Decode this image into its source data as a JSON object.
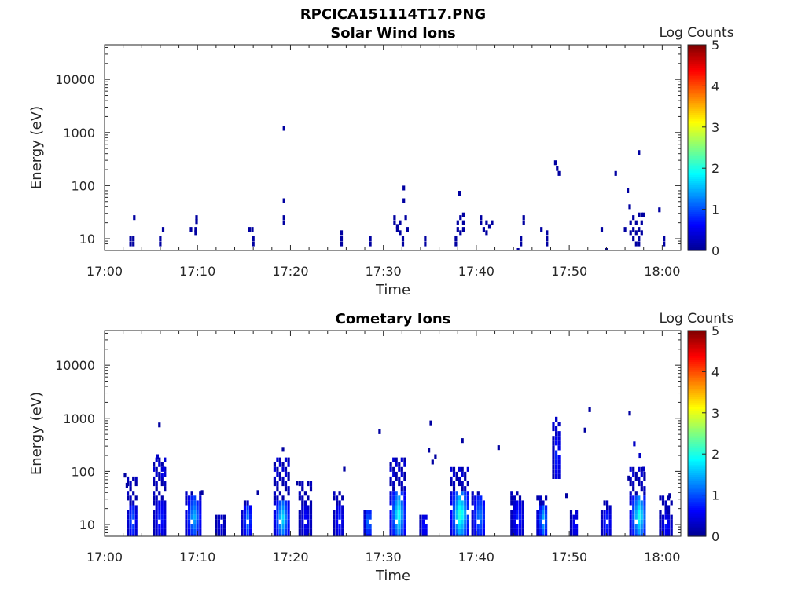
{
  "figure_title": "RPCICA151114T17.PNG",
  "colormap": [
    "#00008f",
    "#0000ff",
    "#0080ff",
    "#00ffff",
    "#80ff80",
    "#ffff00",
    "#ff8000",
    "#ff0000",
    "#800000"
  ],
  "chart_data": [
    {
      "type": "heatmap",
      "title": "Solar Wind Ions",
      "xlabel": "Time",
      "ylabel": "Energy (eV)",
      "x_ticks": [
        "17:00",
        "17:10",
        "17:20",
        "17:30",
        "17:40",
        "17:50",
        "18:00"
      ],
      "y_ticks": [
        "10",
        "100",
        "1000",
        "10000"
      ],
      "y_scale": "log",
      "x_range_minutes_after_1700": [
        0,
        62
      ],
      "y_range_eV": [
        6,
        45000
      ],
      "colorbar": {
        "label": "Log Counts",
        "min": 0,
        "max": 5,
        "ticks": [
          "0",
          "1",
          "2",
          "3",
          "4",
          "5"
        ]
      },
      "cells": [
        {
          "t": 2.8,
          "e": 8,
          "v": 0.1
        },
        {
          "t": 2.8,
          "e": 10,
          "v": 0.1
        },
        {
          "t": 3.1,
          "e": 8,
          "v": 0.1
        },
        {
          "t": 3.1,
          "e": 10,
          "v": 0.1
        },
        {
          "t": 3.2,
          "e": 25,
          "v": 0.1
        },
        {
          "t": 6.0,
          "e": 8,
          "v": 0.1
        },
        {
          "t": 6.0,
          "e": 10,
          "v": 0.1
        },
        {
          "t": 6.3,
          "e": 15,
          "v": 0.1
        },
        {
          "t": 9.3,
          "e": 15,
          "v": 0.1
        },
        {
          "t": 9.8,
          "e": 13,
          "v": 0.1
        },
        {
          "t": 9.8,
          "e": 15,
          "v": 0.1
        },
        {
          "t": 9.9,
          "e": 21,
          "v": 0.1
        },
        {
          "t": 9.9,
          "e": 25,
          "v": 0.1
        },
        {
          "t": 15.6,
          "e": 15,
          "v": 0.1
        },
        {
          "t": 15.9,
          "e": 15,
          "v": 0.1
        },
        {
          "t": 16.0,
          "e": 8,
          "v": 0.1
        },
        {
          "t": 16.0,
          "e": 10,
          "v": 0.1
        },
        {
          "t": 19.3,
          "e": 1200,
          "v": 0.1
        },
        {
          "t": 19.3,
          "e": 52,
          "v": 0.1
        },
        {
          "t": 19.3,
          "e": 20,
          "v": 0.1
        },
        {
          "t": 19.3,
          "e": 25,
          "v": 0.1
        },
        {
          "t": 25.5,
          "e": 8,
          "v": 0.1
        },
        {
          "t": 25.5,
          "e": 10,
          "v": 0.1
        },
        {
          "t": 25.5,
          "e": 13,
          "v": 0.1
        },
        {
          "t": 28.6,
          "e": 8,
          "v": 0.1
        },
        {
          "t": 28.6,
          "e": 10,
          "v": 0.1
        },
        {
          "t": 31.2,
          "e": 20,
          "v": 0.1
        },
        {
          "t": 31.2,
          "e": 25,
          "v": 0.1
        },
        {
          "t": 31.5,
          "e": 15,
          "v": 0.1
        },
        {
          "t": 31.5,
          "e": 17,
          "v": 0.1
        },
        {
          "t": 31.8,
          "e": 13,
          "v": 0.1
        },
        {
          "t": 31.8,
          "e": 20,
          "v": 0.1
        },
        {
          "t": 32.1,
          "e": 8,
          "v": 0.1
        },
        {
          "t": 32.1,
          "e": 10,
          "v": 0.1
        },
        {
          "t": 32.2,
          "e": 52,
          "v": 0.1
        },
        {
          "t": 32.2,
          "e": 90,
          "v": 0.1
        },
        {
          "t": 32.4,
          "e": 25,
          "v": 0.1
        },
        {
          "t": 32.6,
          "e": 15,
          "v": 0.1
        },
        {
          "t": 34.5,
          "e": 8,
          "v": 0.1
        },
        {
          "t": 34.5,
          "e": 10,
          "v": 0.1
        },
        {
          "t": 37.8,
          "e": 8,
          "v": 0.1
        },
        {
          "t": 37.8,
          "e": 10,
          "v": 0.1
        },
        {
          "t": 38.0,
          "e": 15,
          "v": 0.1
        },
        {
          "t": 38.0,
          "e": 20,
          "v": 0.1
        },
        {
          "t": 38.2,
          "e": 72,
          "v": 0.1
        },
        {
          "t": 38.3,
          "e": 13,
          "v": 0.1
        },
        {
          "t": 38.3,
          "e": 25,
          "v": 0.1
        },
        {
          "t": 38.6,
          "e": 15,
          "v": 0.1
        },
        {
          "t": 38.6,
          "e": 20,
          "v": 0.1
        },
        {
          "t": 38.6,
          "e": 28,
          "v": 0.1
        },
        {
          "t": 40.5,
          "e": 20,
          "v": 0.1
        },
        {
          "t": 40.5,
          "e": 25,
          "v": 0.1
        },
        {
          "t": 40.8,
          "e": 15,
          "v": 0.1
        },
        {
          "t": 41.1,
          "e": 13,
          "v": 0.1
        },
        {
          "t": 41.1,
          "e": 20,
          "v": 0.1
        },
        {
          "t": 41.4,
          "e": 17,
          "v": 0.1
        },
        {
          "t": 41.7,
          "e": 20,
          "v": 0.1
        },
        {
          "t": 44.5,
          "e": 6,
          "v": 0.1
        },
        {
          "t": 44.8,
          "e": 8,
          "v": 0.1
        },
        {
          "t": 44.8,
          "e": 10,
          "v": 0.1
        },
        {
          "t": 45.1,
          "e": 20,
          "v": 0.1
        },
        {
          "t": 45.1,
          "e": 25,
          "v": 0.1
        },
        {
          "t": 47.0,
          "e": 15,
          "v": 0.1
        },
        {
          "t": 47.6,
          "e": 8,
          "v": 0.1
        },
        {
          "t": 47.6,
          "e": 10,
          "v": 0.1
        },
        {
          "t": 47.6,
          "e": 13,
          "v": 0.1
        },
        {
          "t": 48.5,
          "e": 270,
          "v": 0.1
        },
        {
          "t": 48.7,
          "e": 210,
          "v": 0.1
        },
        {
          "t": 48.9,
          "e": 170,
          "v": 0.1
        },
        {
          "t": 53.5,
          "e": 15,
          "v": 0.1
        },
        {
          "t": 54.0,
          "e": 6,
          "v": 0.1
        },
        {
          "t": 55.0,
          "e": 170,
          "v": 0.1
        },
        {
          "t": 56.0,
          "e": 15,
          "v": 0.1
        },
        {
          "t": 56.3,
          "e": 80,
          "v": 0.1
        },
        {
          "t": 56.5,
          "e": 40,
          "v": 0.1
        },
        {
          "t": 56.6,
          "e": 13,
          "v": 0.1
        },
        {
          "t": 56.6,
          "e": 20,
          "v": 0.1
        },
        {
          "t": 56.9,
          "e": 10,
          "v": 0.1
        },
        {
          "t": 56.9,
          "e": 15,
          "v": 0.1
        },
        {
          "t": 56.9,
          "e": 25,
          "v": 0.1
        },
        {
          "t": 57.2,
          "e": 8,
          "v": 0.1
        },
        {
          "t": 57.2,
          "e": 13,
          "v": 0.1
        },
        {
          "t": 57.2,
          "e": 20,
          "v": 0.1
        },
        {
          "t": 57.5,
          "e": 8,
          "v": 0.1
        },
        {
          "t": 57.5,
          "e": 10,
          "v": 0.1
        },
        {
          "t": 57.5,
          "e": 15,
          "v": 0.1
        },
        {
          "t": 57.5,
          "e": 28,
          "v": 0.1
        },
        {
          "t": 57.5,
          "e": 420,
          "v": 0.1
        },
        {
          "t": 57.8,
          "e": 13,
          "v": 0.1
        },
        {
          "t": 57.8,
          "e": 20,
          "v": 0.1
        },
        {
          "t": 57.8,
          "e": 28,
          "v": 0.1
        },
        {
          "t": 58.0,
          "e": 28,
          "v": 0.1
        },
        {
          "t": 59.7,
          "e": 35,
          "v": 0.1
        },
        {
          "t": 60.2,
          "e": 8,
          "v": 0.1
        },
        {
          "t": 60.2,
          "e": 10,
          "v": 0.1
        }
      ]
    },
    {
      "type": "heatmap",
      "title": "Cometary Ions",
      "xlabel": "Time",
      "ylabel": "Energy (eV)",
      "x_ticks": [
        "17:00",
        "17:10",
        "17:20",
        "17:30",
        "17:40",
        "17:50",
        "18:00"
      ],
      "y_ticks": [
        "10",
        "100",
        "1000",
        "10000"
      ],
      "y_scale": "log",
      "x_range_minutes_after_1700": [
        0,
        62
      ],
      "y_range_eV": [
        6,
        45000
      ],
      "colorbar": {
        "label": "Log Counts",
        "min": 0,
        "max": 5,
        "ticks": [
          "0",
          "1",
          "2",
          "3",
          "4",
          "5"
        ]
      },
      "bursts": [
        {
          "t0": 2.5,
          "t1": 3.4,
          "emin": 6,
          "ecore": 25,
          "emax": 85,
          "peak": 1.3
        },
        {
          "t0": 5.3,
          "t1": 6.6,
          "emin": 6,
          "ecore": 30,
          "emax": 200,
          "peak": 0.9
        },
        {
          "t0": 8.8,
          "t1": 10.3,
          "emin": 6,
          "ecore": 32,
          "emax": 40,
          "peak": 1.6
        },
        {
          "t0": 12.0,
          "t1": 12.9,
          "emin": 6,
          "ecore": 15,
          "emax": 15,
          "peak": 0.6
        },
        {
          "t0": 14.8,
          "t1": 15.9,
          "emin": 6,
          "ecore": 25,
          "emax": 30,
          "peak": 1.3
        },
        {
          "t0": 18.3,
          "t1": 19.8,
          "emin": 6,
          "ecore": 28,
          "emax": 170,
          "peak": 1.9
        },
        {
          "t0": 21.0,
          "t1": 22.2,
          "emin": 6,
          "ecore": 25,
          "emax": 60,
          "peak": 0.7
        },
        {
          "t0": 24.7,
          "t1": 25.7,
          "emin": 6,
          "ecore": 25,
          "emax": 40,
          "peak": 0.9
        },
        {
          "t0": 28.0,
          "t1": 28.8,
          "emin": 6,
          "ecore": 20,
          "emax": 20,
          "peak": 1.5
        },
        {
          "t0": 30.8,
          "t1": 32.3,
          "emin": 6,
          "ecore": 40,
          "emax": 190,
          "peak": 2.1
        },
        {
          "t0": 34.0,
          "t1": 34.8,
          "emin": 6,
          "ecore": 15,
          "emax": 15,
          "peak": 0.9
        },
        {
          "t0": 37.3,
          "t1": 39.1,
          "emin": 6,
          "ecore": 40,
          "emax": 110,
          "peak": 2.3
        },
        {
          "t0": 39.6,
          "t1": 41.0,
          "emin": 6,
          "ecore": 35,
          "emax": 40,
          "peak": 1.4
        },
        {
          "t0": 43.8,
          "t1": 45.1,
          "emin": 6,
          "ecore": 30,
          "emax": 40,
          "peak": 0.9
        },
        {
          "t0": 46.6,
          "t1": 47.7,
          "emin": 6,
          "ecore": 25,
          "emax": 35,
          "peak": 1.6
        },
        {
          "t0": 48.3,
          "t1": 49.0,
          "emin": 80,
          "ecore": 500,
          "emax": 1000,
          "peak": 1.0
        },
        {
          "t0": 50.2,
          "t1": 51.0,
          "emin": 6,
          "ecore": 15,
          "emax": 20,
          "peak": 0.8
        },
        {
          "t0": 53.5,
          "t1": 54.5,
          "emin": 6,
          "ecore": 20,
          "emax": 30,
          "peak": 1.0
        },
        {
          "t0": 56.6,
          "t1": 58.3,
          "emin": 6,
          "ecore": 35,
          "emax": 120,
          "peak": 2.1
        },
        {
          "t0": 59.8,
          "t1": 61.0,
          "emin": 6,
          "ecore": 15,
          "emax": 35,
          "peak": 0.8
        }
      ],
      "cells": [
        {
          "t": 2.2,
          "e": 85,
          "v": 0.1
        },
        {
          "t": 2.4,
          "e": 55,
          "v": 0.1
        },
        {
          "t": 5.9,
          "e": 750,
          "v": 0.1
        },
        {
          "t": 5.7,
          "e": 190,
          "v": 0.3
        },
        {
          "t": 6.2,
          "e": 85,
          "v": 0.5
        },
        {
          "t": 6.4,
          "e": 110,
          "v": 0.5
        },
        {
          "t": 10.5,
          "e": 40,
          "v": 0.1
        },
        {
          "t": 16.5,
          "e": 40,
          "v": 0.1
        },
        {
          "t": 19.2,
          "e": 260,
          "v": 0.1
        },
        {
          "t": 20.7,
          "e": 60,
          "v": 0.1
        },
        {
          "t": 25.8,
          "e": 110,
          "v": 0.1
        },
        {
          "t": 29.6,
          "e": 560,
          "v": 0.1
        },
        {
          "t": 35.1,
          "e": 820,
          "v": 0.1
        },
        {
          "t": 34.9,
          "e": 250,
          "v": 0.1
        },
        {
          "t": 35.3,
          "e": 150,
          "v": 0.1
        },
        {
          "t": 35.6,
          "e": 190,
          "v": 0.1
        },
        {
          "t": 38.5,
          "e": 380,
          "v": 0.1
        },
        {
          "t": 42.4,
          "e": 280,
          "v": 0.1
        },
        {
          "t": 48.6,
          "e": 960,
          "v": 0.3
        },
        {
          "t": 49.7,
          "e": 35,
          "v": 0.1
        },
        {
          "t": 51.7,
          "e": 600,
          "v": 0.1
        },
        {
          "t": 52.2,
          "e": 1450,
          "v": 0.1
        },
        {
          "t": 56.5,
          "e": 1250,
          "v": 0.1
        },
        {
          "t": 56.4,
          "e": 75,
          "v": 0.1
        },
        {
          "t": 57.0,
          "e": 330,
          "v": 0.3
        },
        {
          "t": 57.6,
          "e": 200,
          "v": 0.3
        },
        {
          "t": 58.0,
          "e": 110,
          "v": 0.3
        },
        {
          "t": 60.8,
          "e": 35,
          "v": 0.1
        }
      ]
    }
  ]
}
